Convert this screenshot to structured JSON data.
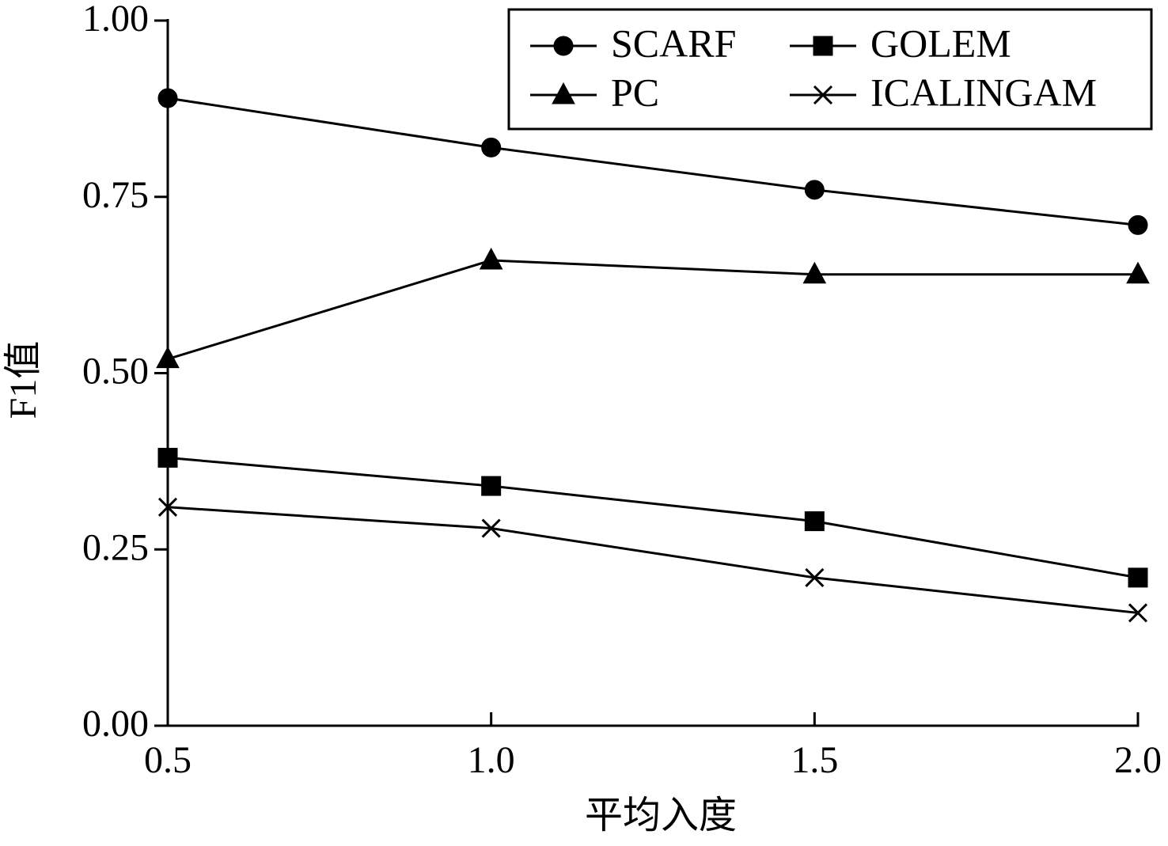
{
  "chart_data": {
    "type": "line",
    "x_label": "平均入度",
    "y_label": "F1值",
    "x": [
      0.5,
      1.0,
      1.5,
      2.0
    ],
    "xlim": [
      0.5,
      2.0
    ],
    "xticks": [
      0.5,
      {
        "value": 1.0,
        "label": "1.0"
      },
      1.5,
      {
        "value": 2.0,
        "label": "2.0"
      }
    ],
    "ylim": [
      0,
      1
    ],
    "yticks": [
      {
        "value": 0,
        "label": "0.00"
      },
      0.25,
      {
        "value": 0.5,
        "label": "0.50"
      },
      0.75,
      {
        "value": 1,
        "label": "1.00"
      }
    ],
    "grid": false,
    "legend": "upper right",
    "series": [
      {
        "name": "SCARF",
        "color": "#000000",
        "marker": "circle",
        "values": [
          0.89,
          0.82,
          0.76,
          0.71
        ]
      },
      {
        "name": "GOLEM",
        "color": "#000000",
        "marker": "square",
        "values": [
          0.38,
          0.34,
          0.29,
          0.21
        ]
      },
      {
        "name": "PC",
        "color": "#000000",
        "marker": "triangle",
        "values": [
          0.52,
          0.66,
          0.64,
          0.64
        ]
      },
      {
        "name": "ICALINGAM",
        "color": "#000000",
        "marker": "cross",
        "values": [
          0.31,
          0.28,
          0.21,
          0.16
        ]
      }
    ]
  }
}
